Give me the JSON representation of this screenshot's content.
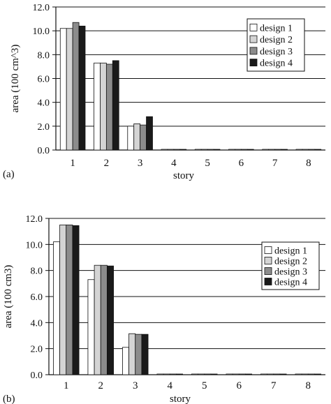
{
  "chart_data": [
    {
      "panel_label": "(a)",
      "type": "bar",
      "categories": [
        "1",
        "2",
        "3",
        "4",
        "5",
        "6",
        "7",
        "8"
      ],
      "series": [
        {
          "name": "design 1",
          "values": [
            10.2,
            7.3,
            2.0,
            0,
            0,
            0,
            0,
            0
          ]
        },
        {
          "name": "design 2",
          "values": [
            10.2,
            7.3,
            2.2,
            0,
            0,
            0,
            0,
            0
          ]
        },
        {
          "name": "design 3",
          "values": [
            10.7,
            7.2,
            2.1,
            0,
            0,
            0,
            0,
            0
          ]
        },
        {
          "name": "design 4",
          "values": [
            10.4,
            7.5,
            2.8,
            0,
            0,
            0,
            0,
            0
          ]
        }
      ],
      "xlabel": "story",
      "ylabel": "area (100 cm^3)",
      "ylim": [
        0,
        12
      ],
      "yticks": [
        "0.0",
        "2.0",
        "4.0",
        "6.0",
        "8.0",
        "10.0",
        "12.0"
      ],
      "grid": true,
      "legend_position": "top-right"
    },
    {
      "panel_label": "(b)",
      "type": "bar",
      "categories": [
        "1",
        "2",
        "3",
        "4",
        "5",
        "6",
        "7",
        "8"
      ],
      "series": [
        {
          "name": "design 1",
          "values": [
            10.2,
            7.3,
            2.1,
            0,
            0,
            0,
            0,
            0
          ]
        },
        {
          "name": "design 2",
          "values": [
            11.5,
            8.4,
            3.15,
            0,
            0,
            0,
            0,
            0
          ]
        },
        {
          "name": "design 3",
          "values": [
            11.5,
            8.4,
            3.1,
            0,
            0,
            0,
            0,
            0
          ]
        },
        {
          "name": "design 4",
          "values": [
            11.45,
            8.35,
            3.1,
            0,
            0,
            0,
            0,
            0
          ]
        }
      ],
      "xlabel": "story",
      "ylabel": "area (100 cm3)",
      "ylim": [
        0,
        12
      ],
      "yticks": [
        "0.0",
        "2.0",
        "4.0",
        "6.0",
        "8.0",
        "10.0",
        "12.0"
      ],
      "grid": true,
      "legend_position": "top-right"
    }
  ],
  "colors": {
    "series": [
      "#ffffff",
      "#d4d4d4",
      "#8c8c8c",
      "#1a1a1a"
    ],
    "axis": "#111111",
    "grid": "#111111"
  }
}
